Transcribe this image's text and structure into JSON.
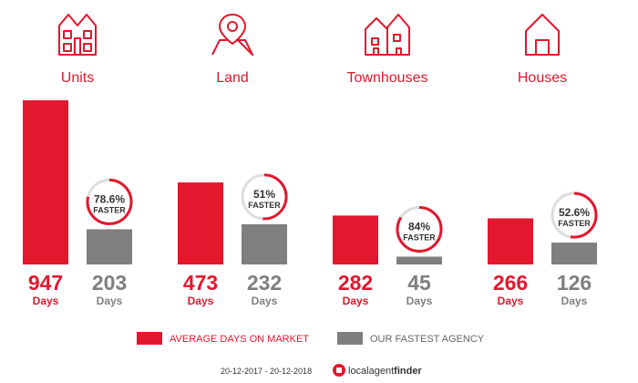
{
  "colors": {
    "red": "#e3172d",
    "grey": "#7f7f7f",
    "ring_bg": "#dddddd",
    "text_dark": "#333333"
  },
  "chart_data": {
    "type": "bar",
    "categories": [
      "Units",
      "Land",
      "Townhouses",
      "Houses"
    ],
    "series": [
      {
        "name": "AVERAGE DAYS ON MARKET",
        "values": [
          947,
          473,
          282,
          266
        ]
      },
      {
        "name": "OUR FASTEST AGENCY",
        "values": [
          203,
          232,
          45,
          126
        ]
      }
    ],
    "faster_pct": [
      "78.6%",
      "51%",
      "84%",
      "52.6%"
    ],
    "faster_fraction": [
      0.786,
      0.51,
      0.84,
      0.526
    ],
    "badge_text": "FASTER",
    "unit_label": "Days",
    "icons": [
      "units-icon",
      "land-icon",
      "townhouses-icon",
      "houses-icon"
    ],
    "ylim": [
      0,
      947
    ],
    "legend_position": "bottom"
  },
  "footer": {
    "date_range": "20-12-2017 - 20-12-2018",
    "brand_part1": "localagent",
    "brand_part2": "finder"
  }
}
